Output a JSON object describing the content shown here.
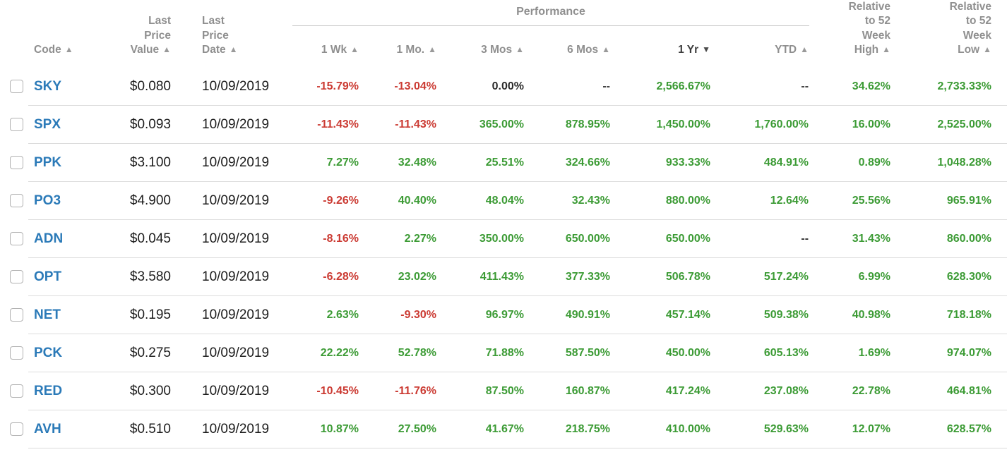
{
  "colors": {
    "positive": "#3c9b35",
    "negative": "#cb3a32",
    "neutral": "#2b2b2b",
    "code_link": "#2b7ab8",
    "header_gray": "#8f8f8f",
    "active_sort": "#3d3d3d"
  },
  "header": {
    "performance_label": "Performance",
    "code_label": "Code",
    "code_arrow": "▲",
    "value_label": "Last\nPrice\nValue",
    "value_arrow": "▲",
    "date_label": "Last\nPrice\nDate",
    "date_arrow": "▲",
    "perf_columns": [
      {
        "label": "1 Wk",
        "arrow": "▲",
        "active": false
      },
      {
        "label": "1 Mo.",
        "arrow": "▲",
        "active": false
      },
      {
        "label": "3 Mos",
        "arrow": "▲",
        "active": false
      },
      {
        "label": "6 Mos",
        "arrow": "▲",
        "active": false
      },
      {
        "label": "1 Yr",
        "arrow": "▼",
        "active": true
      },
      {
        "label": "YTD",
        "arrow": "▲",
        "active": false
      }
    ],
    "rel_high_label": "Relative\nto 52\nWeek\nHigh",
    "rel_high_arrow": "▲",
    "rel_low_label": "Relative\nto 52\nWeek\nLow",
    "rel_low_arrow": "▲"
  },
  "rows": [
    {
      "code": "SKY",
      "last_price_value": "$0.080",
      "last_price_date": "10/09/2019",
      "perf": {
        "wk1": "-15.79%",
        "mo1": "-13.04%",
        "mos3": "0.00%",
        "mos6": "--",
        "yr1": "2,566.67%",
        "ytd": "--"
      },
      "rel_52w_high": "34.62%",
      "rel_52w_low": "2,733.33%"
    },
    {
      "code": "SPX",
      "last_price_value": "$0.093",
      "last_price_date": "10/09/2019",
      "perf": {
        "wk1": "-11.43%",
        "mo1": "-11.43%",
        "mos3": "365.00%",
        "mos6": "878.95%",
        "yr1": "1,450.00%",
        "ytd": "1,760.00%"
      },
      "rel_52w_high": "16.00%",
      "rel_52w_low": "2,525.00%"
    },
    {
      "code": "PPK",
      "last_price_value": "$3.100",
      "last_price_date": "10/09/2019",
      "perf": {
        "wk1": "7.27%",
        "mo1": "32.48%",
        "mos3": "25.51%",
        "mos6": "324.66%",
        "yr1": "933.33%",
        "ytd": "484.91%"
      },
      "rel_52w_high": "0.89%",
      "rel_52w_low": "1,048.28%"
    },
    {
      "code": "PO3",
      "last_price_value": "$4.900",
      "last_price_date": "10/09/2019",
      "perf": {
        "wk1": "-9.26%",
        "mo1": "40.40%",
        "mos3": "48.04%",
        "mos6": "32.43%",
        "yr1": "880.00%",
        "ytd": "12.64%"
      },
      "rel_52w_high": "25.56%",
      "rel_52w_low": "965.91%"
    },
    {
      "code": "ADN",
      "last_price_value": "$0.045",
      "last_price_date": "10/09/2019",
      "perf": {
        "wk1": "-8.16%",
        "mo1": "2.27%",
        "mos3": "350.00%",
        "mos6": "650.00%",
        "yr1": "650.00%",
        "ytd": "--"
      },
      "rel_52w_high": "31.43%",
      "rel_52w_low": "860.00%"
    },
    {
      "code": "OPT",
      "last_price_value": "$3.580",
      "last_price_date": "10/09/2019",
      "perf": {
        "wk1": "-6.28%",
        "mo1": "23.02%",
        "mos3": "411.43%",
        "mos6": "377.33%",
        "yr1": "506.78%",
        "ytd": "517.24%"
      },
      "rel_52w_high": "6.99%",
      "rel_52w_low": "628.30%"
    },
    {
      "code": "NET",
      "last_price_value": "$0.195",
      "last_price_date": "10/09/2019",
      "perf": {
        "wk1": "2.63%",
        "mo1": "-9.30%",
        "mos3": "96.97%",
        "mos6": "490.91%",
        "yr1": "457.14%",
        "ytd": "509.38%"
      },
      "rel_52w_high": "40.98%",
      "rel_52w_low": "718.18%"
    },
    {
      "code": "PCK",
      "last_price_value": "$0.275",
      "last_price_date": "10/09/2019",
      "perf": {
        "wk1": "22.22%",
        "mo1": "52.78%",
        "mos3": "71.88%",
        "mos6": "587.50%",
        "yr1": "450.00%",
        "ytd": "605.13%"
      },
      "rel_52w_high": "1.69%",
      "rel_52w_low": "974.07%"
    },
    {
      "code": "RED",
      "last_price_value": "$0.300",
      "last_price_date": "10/09/2019",
      "perf": {
        "wk1": "-10.45%",
        "mo1": "-11.76%",
        "mos3": "87.50%",
        "mos6": "160.87%",
        "yr1": "417.24%",
        "ytd": "237.08%"
      },
      "rel_52w_high": "22.78%",
      "rel_52w_low": "464.81%"
    },
    {
      "code": "AVH",
      "last_price_value": "$0.510",
      "last_price_date": "10/09/2019",
      "perf": {
        "wk1": "10.87%",
        "mo1": "27.50%",
        "mos3": "41.67%",
        "mos6": "218.75%",
        "yr1": "410.00%",
        "ytd": "529.63%"
      },
      "rel_52w_high": "12.07%",
      "rel_52w_low": "628.57%"
    }
  ]
}
